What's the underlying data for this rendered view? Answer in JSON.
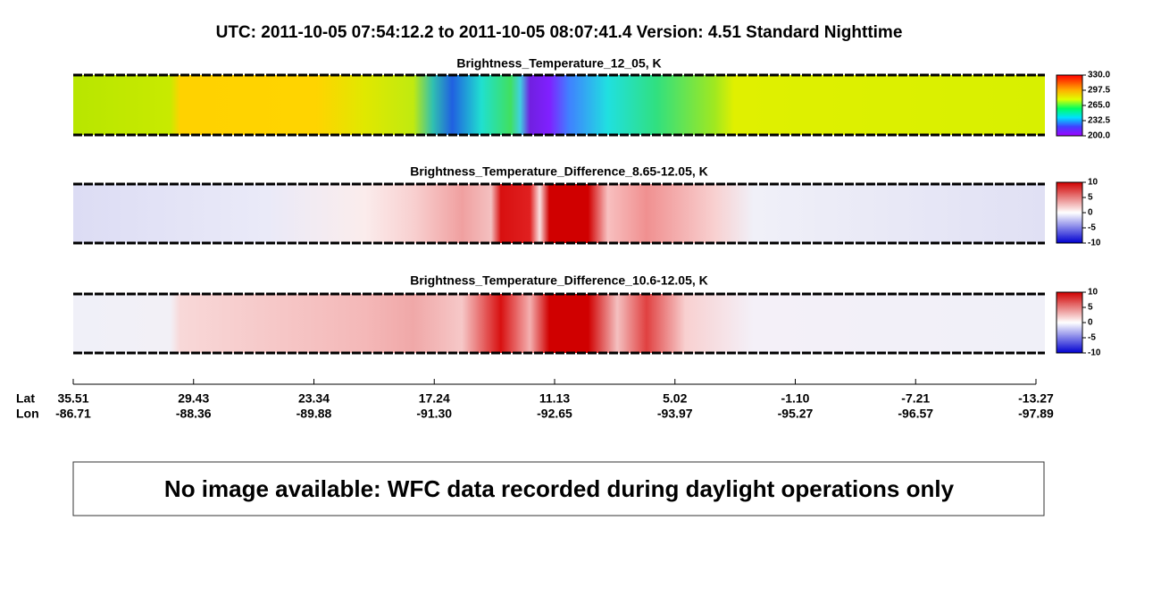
{
  "header": {
    "title": "UTC:  2011-10-05   07:54:12.2  to  2011-10-05   08:07:41.4    Version: 4.51  Standard Nighttime"
  },
  "panels": [
    {
      "title": "Brightness_Temperature_12_05, K",
      "colorbar_ticks": [
        {
          "value": 330,
          "label": "330.0"
        },
        {
          "value": 297.5,
          "label": "297.5"
        },
        {
          "value": 265,
          "label": "265.0"
        },
        {
          "value": 232.5,
          "label": "232.5"
        },
        {
          "value": 200,
          "label": "200.0"
        }
      ]
    },
    {
      "title": "Brightness_Temperature_Difference_8.65-12.05, K",
      "colorbar_ticks": [
        10,
        5,
        0,
        -5,
        -10
      ]
    },
    {
      "title": "Brightness_Temperature_Difference_10.6-12.05, K",
      "colorbar_ticks": [
        10,
        5,
        0,
        -5,
        -10
      ]
    }
  ],
  "axis": {
    "lat_label": "Lat",
    "lon_label": "Lon",
    "ticks": [
      {
        "lat": "35.51",
        "lon": "-86.71"
      },
      {
        "lat": "29.43",
        "lon": "-88.36"
      },
      {
        "lat": "23.34",
        "lon": "-89.88"
      },
      {
        "lat": "17.24",
        "lon": "-91.30"
      },
      {
        "lat": "11.13",
        "lon": "-92.65"
      },
      {
        "lat": "5.02",
        "lon": "-93.97"
      },
      {
        "lat": "-1.10",
        "lon": "-95.27"
      },
      {
        "lat": "-7.21",
        "lon": "-96.57"
      },
      {
        "lat": "-13.27",
        "lon": "-97.89"
      }
    ]
  },
  "message": "No image available: WFC data recorded during daylight operations only"
}
